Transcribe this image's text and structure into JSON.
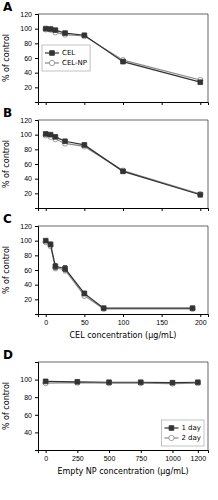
{
  "chart_data": [
    {
      "type": "line",
      "title": "A",
      "ylabel": "% of control",
      "x": [
        0,
        6.25,
        12.5,
        25,
        50,
        100,
        200
      ],
      "xlim": [
        -10,
        210
      ],
      "xticks": [
        0,
        50,
        100,
        150,
        200
      ],
      "ylim": [
        0,
        120
      ],
      "yticks": [
        20,
        40,
        60,
        80,
        100,
        120
      ],
      "tick_labels": "y",
      "grid": false,
      "legend": "center left",
      "series": [
        {
          "name": "CEL",
          "color": "#333333",
          "marker": "square",
          "line_style": "solid",
          "values": [
            100,
            99.5,
            98,
            94,
            91,
            55,
            27
          ],
          "errors": [
            1.5,
            1,
            1,
            1.5,
            1.5,
            2.5,
            2
          ]
        },
        {
          "name": "CEL-NP",
          "color": "#888888",
          "marker": "circle-open",
          "line_style": "solid",
          "values": [
            99,
            98.5,
            95,
            92,
            90,
            57,
            30
          ],
          "errors": [
            1.5,
            1,
            1.5,
            1.5,
            1.5,
            2.5,
            2
          ]
        }
      ]
    },
    {
      "type": "line",
      "title": "B",
      "ylabel": "% of control",
      "x": [
        0,
        6.25,
        12.5,
        25,
        50,
        100,
        200
      ],
      "xlim": [
        -10,
        210
      ],
      "xticks": [
        0,
        50,
        100,
        150,
        200
      ],
      "ylim": [
        0,
        120
      ],
      "yticks": [
        20,
        40,
        60,
        80,
        100,
        120
      ],
      "tick_labels": "y",
      "grid": false,
      "series": [
        {
          "color": "#333333",
          "marker": "square",
          "line_style": "solid",
          "values": [
            101,
            100,
            97,
            91,
            86,
            50,
            18
          ],
          "errors": [
            2,
            1.5,
            1.5,
            2,
            2.5,
            2.5,
            1.5
          ]
        },
        {
          "color": "#888888",
          "marker": "circle-open",
          "line_style": "solid",
          "values": [
            99,
            97,
            94,
            88,
            84,
            51,
            19
          ],
          "errors": [
            2,
            1.5,
            1.5,
            2,
            2.5,
            2.5,
            1.5
          ]
        }
      ]
    },
    {
      "type": "line",
      "title": "C",
      "ylabel": "% of control",
      "xlabel": "CEL concentration (μg/mL)",
      "x": [
        0,
        6.25,
        12.5,
        25,
        50,
        75,
        190
      ],
      "xlim": [
        -10,
        210
      ],
      "xticks": [
        0,
        50,
        100,
        150,
        200
      ],
      "ylim": [
        0,
        120
      ],
      "yticks": [
        20,
        40,
        60,
        80,
        100,
        120
      ],
      "grid": false,
      "series": [
        {
          "color": "#333333",
          "marker": "square",
          "line_style": "solid",
          "values": [
            100,
            95,
            65,
            62,
            28,
            8,
            8
          ],
          "errors": [
            2,
            3,
            4,
            4,
            3,
            1,
            1
          ]
        },
        {
          "color": "#888888",
          "marker": "circle-open",
          "line_style": "solid",
          "values": [
            98,
            93,
            63,
            60,
            25,
            7,
            7
          ],
          "errors": [
            2,
            3,
            4,
            4,
            3,
            1,
            1
          ]
        }
      ]
    },
    {
      "type": "line",
      "title": "D",
      "ylabel": "% of control",
      "xlabel": "Empty NP concentration (μg/mL)",
      "x": [
        0,
        250,
        500,
        750,
        1000,
        1200
      ],
      "xlim": [
        -60,
        1280
      ],
      "xticks": [
        0,
        250,
        500,
        750,
        1000,
        1200
      ],
      "ylim": [
        20,
        120
      ],
      "yticks": [
        40,
        60,
        80,
        100
      ],
      "grid": false,
      "legend": "lower right",
      "series": [
        {
          "name": "1 day",
          "color": "#333333",
          "marker": "square",
          "line_style": "solid",
          "values": [
            98,
            97.5,
            97,
            97,
            96.5,
            97
          ],
          "errors": [
            1.5,
            1.5,
            1.5,
            1.5,
            1.5,
            1.5
          ]
        },
        {
          "name": "2 day",
          "color": "#888888",
          "marker": "circle-open",
          "line_style": "solid",
          "values": [
            96,
            96.5,
            96,
            96,
            95.5,
            96
          ],
          "errors": [
            1.5,
            1.5,
            1.5,
            1.5,
            1.5,
            1.5
          ]
        }
      ]
    }
  ]
}
